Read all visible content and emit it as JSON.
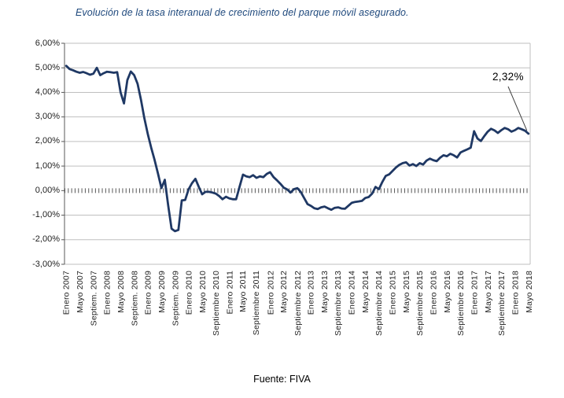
{
  "title": "Evolución de la tasa interanual de crecimiento del parque móvil asegurado.",
  "source": "Fuente: FIVA",
  "colors": {
    "line": "#1F3864",
    "title": "#1F497D",
    "grid": "#BFBFBF",
    "axis": "#595959",
    "text": "#1F1F1F",
    "annotation_leader": "#404040"
  },
  "chart_data": {
    "type": "line",
    "title": "Evolución de la tasa interanual de crecimiento del parque móvil asegurado.",
    "ylabel": "",
    "xlabel": "",
    "ylim": [
      -3,
      6
    ],
    "grid": "horizontal",
    "legend": "none",
    "y_ticks": [
      6,
      5,
      4,
      3,
      2,
      1,
      0,
      -1,
      -2,
      -3
    ],
    "y_tick_labels": [
      "6,00%",
      "5,00%",
      "4,00%",
      "3,00%",
      "2,00%",
      "1,00%",
      "0,00%",
      "-1,00%",
      "-2,00%",
      "-3,00%"
    ],
    "x_tick_every": 4,
    "x_tick_labels": [
      "Enero 2007",
      "Mayo 2007",
      "Septiem. 2007",
      "Enero 2008",
      "Mayo 2008",
      "Septiem. 2008",
      "Enero 2009",
      "Mayo 2009",
      "Septiem. 2009",
      "Enero 2010",
      "Mayo 2010",
      "Septiembre 2010",
      "Enero 2011",
      "Mayo 2011",
      "Septiembre 2011",
      "Enero 2012",
      "Mayo 2012",
      "Septiembre 2012",
      "Enero 2013",
      "Mayo 2013",
      "Septiembre 2013",
      "Enero 2014",
      "Mayo 2014",
      "Septiembre 2014",
      "Enero 2015",
      "Mayo 2015",
      "Septiembre 2015",
      "Enero 2016",
      "Mayo 2016",
      "Septiembre 2016",
      "Enero 2017",
      "Mayo 2017",
      "Septiembre 2017",
      "Enero 2018",
      "Mayo 2018"
    ],
    "x_start": "Enero 2007",
    "x_end": "Mayo 2018",
    "x_frequency": "monthly",
    "values": [
      5.08,
      4.95,
      4.9,
      4.84,
      4.8,
      4.83,
      4.78,
      4.72,
      4.76,
      5.0,
      4.7,
      4.78,
      4.84,
      4.82,
      4.8,
      4.82,
      4.0,
      3.55,
      4.5,
      4.85,
      4.7,
      4.35,
      3.7,
      2.95,
      2.3,
      1.75,
      1.25,
      0.7,
      0.1,
      0.44,
      -0.6,
      -1.55,
      -1.65,
      -1.6,
      -0.4,
      -0.38,
      0.05,
      0.3,
      0.48,
      0.15,
      -0.15,
      -0.05,
      -0.05,
      -0.08,
      -0.12,
      -0.22,
      -0.35,
      -0.25,
      -0.32,
      -0.35,
      -0.35,
      0.15,
      0.65,
      0.58,
      0.55,
      0.63,
      0.52,
      0.58,
      0.55,
      0.68,
      0.75,
      0.55,
      0.42,
      0.28,
      0.12,
      0.05,
      -0.08,
      0.06,
      0.1,
      -0.05,
      -0.3,
      -0.55,
      -0.62,
      -0.72,
      -0.75,
      -0.68,
      -0.65,
      -0.72,
      -0.78,
      -0.7,
      -0.68,
      -0.73,
      -0.74,
      -0.62,
      -0.5,
      -0.46,
      -0.44,
      -0.42,
      -0.3,
      -0.26,
      -0.12,
      0.15,
      0.06,
      0.35,
      0.6,
      0.66,
      0.8,
      0.94,
      1.05,
      1.12,
      1.15,
      1.02,
      1.08,
      1.0,
      1.12,
      1.06,
      1.22,
      1.3,
      1.24,
      1.2,
      1.34,
      1.44,
      1.4,
      1.5,
      1.44,
      1.35,
      1.55,
      1.62,
      1.68,
      1.75,
      2.42,
      2.12,
      2.02,
      2.22,
      2.4,
      2.52,
      2.45,
      2.35,
      2.46,
      2.55,
      2.5,
      2.4,
      2.46,
      2.55,
      2.5,
      2.44,
      2.32
    ],
    "annotation": {
      "text": "2,32%",
      "value": 2.32,
      "point": "last"
    }
  }
}
